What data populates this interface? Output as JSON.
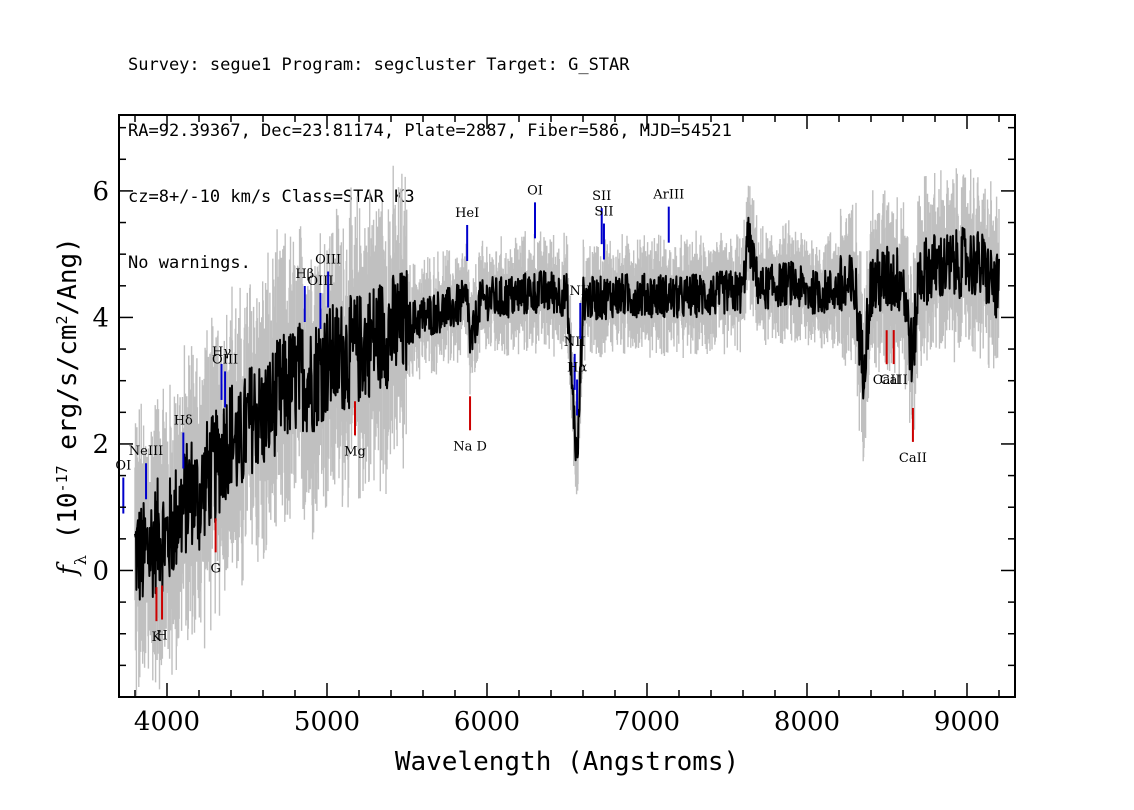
{
  "header": {
    "line1": "Survey: segue1 Program: segcluster Target: G_STAR",
    "line2": "RA=92.39367, Dec=23.81174, Plate=2887, Fiber=586, MJD=54521",
    "line3": "cz=8+/-10 km/s Class=STAR K3",
    "line4": "No warnings."
  },
  "chart_data": {
    "type": "line",
    "xlabel": "Wavelength (Angstroms)",
    "ylabel": "f_λ (10^-17 erg/s/cm^2/Ang)",
    "xlim": [
      3700,
      9300
    ],
    "ylim": [
      -2,
      7.2
    ],
    "x_ticks": [
      4000,
      5000,
      6000,
      7000,
      8000,
      9000
    ],
    "y_ticks": [
      0,
      2,
      4,
      6
    ],
    "colors": {
      "flux": "#000000",
      "error": "#c0c0c0",
      "emission": "#0000cc",
      "absorption": "#cc0000"
    },
    "series": [
      {
        "name": "flux",
        "x": [
          3800,
          3850,
          3900,
          3950,
          4000,
          4050,
          4100,
          4150,
          4200,
          4250,
          4300,
          4350,
          4400,
          4450,
          4500,
          4550,
          4600,
          4650,
          4700,
          4750,
          4800,
          4850,
          4900,
          4950,
          5000,
          5100,
          5200,
          5300,
          5400,
          5500,
          5600,
          5700,
          5800,
          5880,
          5895,
          5950,
          6000,
          6100,
          6200,
          6300,
          6400,
          6500,
          6563,
          6600,
          6700,
          6800,
          6900,
          7000,
          7100,
          7200,
          7300,
          7400,
          7500,
          7600,
          7630,
          7700,
          7800,
          7900,
          8000,
          8100,
          8200,
          8300,
          8350,
          8400,
          8500,
          8600,
          8660,
          8700,
          8800,
          8900,
          9000,
          9100,
          9200
        ],
        "y": [
          0.3,
          0.2,
          0.4,
          0.6,
          0.5,
          0.8,
          1.0,
          1.3,
          1.1,
          1.5,
          1.6,
          1.9,
          2.2,
          1.9,
          2.3,
          2.5,
          2.4,
          2.6,
          2.8,
          2.9,
          3.0,
          3.1,
          3.0,
          3.2,
          3.3,
          3.4,
          3.5,
          3.7,
          3.8,
          3.9,
          4.0,
          4.1,
          4.15,
          4.3,
          3.5,
          4.2,
          4.3,
          4.3,
          4.35,
          4.4,
          4.4,
          4.35,
          1.6,
          4.3,
          4.3,
          4.35,
          4.35,
          4.35,
          4.35,
          4.3,
          4.35,
          4.35,
          4.4,
          4.4,
          5.3,
          4.45,
          4.5,
          4.55,
          4.4,
          4.4,
          4.45,
          4.45,
          3.2,
          4.5,
          4.6,
          4.6,
          3.3,
          4.7,
          4.8,
          4.8,
          4.9,
          4.8,
          4.4
        ]
      }
    ],
    "lines": [
      {
        "label": "OI",
        "x": 3727,
        "kind": "emission"
      },
      {
        "label": "NeIII",
        "x": 3869,
        "kind": "emission"
      },
      {
        "label": "Hδ",
        "x": 4102,
        "kind": "emission"
      },
      {
        "label": "Hγ",
        "x": 4341,
        "kind": "emission"
      },
      {
        "label": "OIII",
        "x": 4363,
        "kind": "emission"
      },
      {
        "label": "Hβ",
        "x": 4861,
        "kind": "emission"
      },
      {
        "label": "OIII",
        "x": 4959,
        "kind": "emission"
      },
      {
        "label": "OIII",
        "x": 5007,
        "kind": "emission"
      },
      {
        "label": "HeI",
        "x": 5876,
        "kind": "emission"
      },
      {
        "label": "OI",
        "x": 6300,
        "kind": "emission"
      },
      {
        "label": "NII",
        "x": 6548,
        "kind": "emission"
      },
      {
        "label": "Hα",
        "x": 6563,
        "kind": "emission"
      },
      {
        "label": "NII",
        "x": 6583,
        "kind": "emission"
      },
      {
        "label": "SII",
        "x": 6717,
        "kind": "emission"
      },
      {
        "label": "SII",
        "x": 6731,
        "kind": "emission"
      },
      {
        "label": "ArIII",
        "x": 7136,
        "kind": "emission"
      },
      {
        "label": "K",
        "x": 3934,
        "kind": "absorption"
      },
      {
        "label": "H",
        "x": 3969,
        "kind": "absorption"
      },
      {
        "label": "G",
        "x": 4304,
        "kind": "absorption"
      },
      {
        "label": "Mg",
        "x": 5175,
        "kind": "absorption"
      },
      {
        "label": "Na D",
        "x": 5894,
        "kind": "absorption"
      },
      {
        "label": "CaII",
        "x": 8498,
        "kind": "absorption"
      },
      {
        "label": "CaII",
        "x": 8542,
        "kind": "absorption"
      },
      {
        "label": "CaII",
        "x": 8662,
        "kind": "absorption"
      }
    ]
  }
}
